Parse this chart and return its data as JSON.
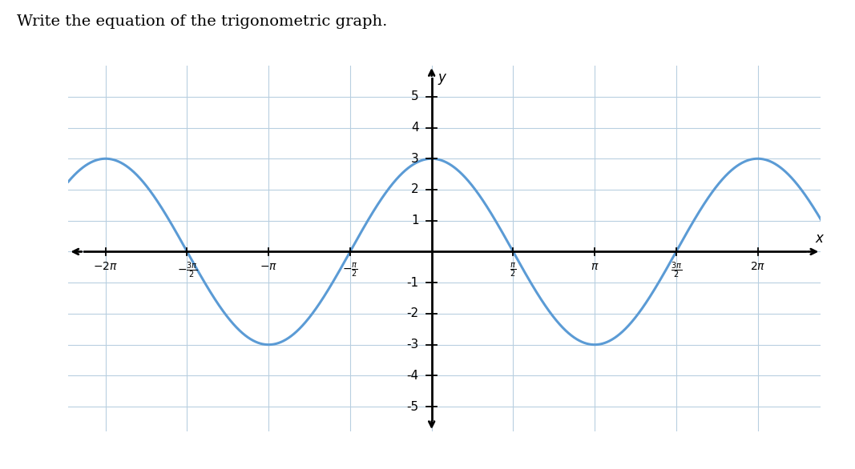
{
  "title": "Write the equation of the trigonometric graph.",
  "title_fontsize": 14,
  "amplitude": 3,
  "x_min": -7.0,
  "x_max": 7.5,
  "y_min": -5.8,
  "y_max": 6.0,
  "y_axis_ticks": [
    -5,
    -4,
    -3,
    -2,
    -1,
    1,
    2,
    3,
    4,
    5
  ],
  "x_axis_ticks_labels": [
    [
      "-2\\pi",
      -6.283185307179586
    ],
    [
      "-\\frac{3\\pi}{2}",
      -4.71238898038469
    ],
    [
      "-\\pi",
      -3.141592653589793
    ],
    [
      "-\\frac{\\pi}{2}",
      -1.5707963267948966
    ],
    [
      "\\frac{\\pi}{2}",
      1.5707963267948966
    ],
    [
      "\\pi",
      3.141592653589793
    ],
    [
      "\\frac{3\\pi}{2}",
      4.71238898038469
    ],
    [
      "2\\pi",
      6.283185307179586
    ]
  ],
  "curve_color": "#5b9bd5",
  "curve_linewidth": 2.2,
  "grid_color": "#b8cfe0",
  "axis_color": "#000000",
  "background_color": "#ffffff",
  "text_color": "#000000",
  "xlabel": "x",
  "ylabel": "y",
  "fig_width": 10.67,
  "fig_height": 5.86,
  "dpi": 100
}
